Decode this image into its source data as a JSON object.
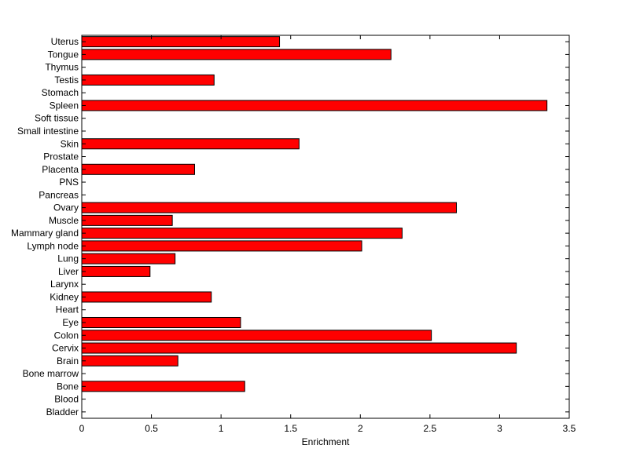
{
  "chart_data": {
    "type": "bar",
    "orientation": "horizontal",
    "title": "",
    "xlabel": "Enrichment",
    "ylabel": "",
    "xlim": [
      0,
      3.5
    ],
    "xticks": [
      "0",
      "0.5",
      "1",
      "1.5",
      "2",
      "2.5",
      "3",
      "3.5"
    ],
    "grid": false,
    "bar_color": "#ff0000",
    "categories": [
      "Bladder",
      "Blood",
      "Bone",
      "Bone marrow",
      "Brain",
      "Cervix",
      "Colon",
      "Eye",
      "Heart",
      "Kidney",
      "Larynx",
      "Liver",
      "Lung",
      "Lymph node",
      "Mammary gland",
      "Muscle",
      "Ovary",
      "Pancreas",
      "PNS",
      "Placenta",
      "Prostate",
      "Skin",
      "Small intestine",
      "Soft tissue",
      "Spleen",
      "Stomach",
      "Testis",
      "Thymus",
      "Tongue",
      "Uterus"
    ],
    "values": [
      0,
      0,
      1.17,
      0,
      0.69,
      3.12,
      2.51,
      1.14,
      0,
      0.93,
      0,
      0.49,
      0.67,
      2.01,
      2.3,
      0.65,
      2.69,
      0,
      0,
      0.81,
      0,
      1.56,
      0,
      0,
      3.34,
      0,
      0.95,
      0,
      2.22,
      1.42
    ]
  }
}
